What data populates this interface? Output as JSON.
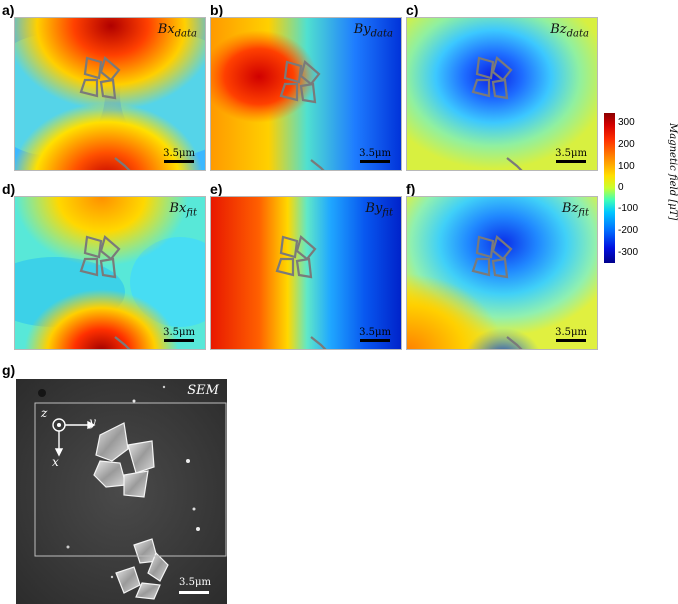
{
  "panels": [
    {
      "letter": "a)",
      "title_main": "Bx",
      "title_sub": "data",
      "scale": "3.5μm"
    },
    {
      "letter": "b)",
      "title_main": "By",
      "title_sub": "data",
      "scale": "3.5μm"
    },
    {
      "letter": "c)",
      "title_main": "Bz",
      "title_sub": "data",
      "scale": "3.5μm"
    },
    {
      "letter": "d)",
      "title_main": "Bx",
      "title_sub": "fit",
      "scale": "3.5μm"
    },
    {
      "letter": "e)",
      "title_main": "By",
      "title_sub": "fit",
      "scale": "3.5μm"
    },
    {
      "letter": "f)",
      "title_main": "Bz",
      "title_sub": "fit",
      "scale": "3.5μm"
    }
  ],
  "colorbar": {
    "label": "Magnetic field [μT]",
    "ticks": [
      "300",
      "200",
      "100",
      "0",
      "-100",
      "-200",
      "-300"
    ],
    "colors": [
      "#8b0000",
      "#ff3000",
      "#ffe000",
      "#40ffb8",
      "#0070ff",
      "#00008b"
    ]
  },
  "sem": {
    "letter": "g)",
    "title": "SEM",
    "scale": "3.5μm",
    "axis_z": "z",
    "axis_y": "y",
    "axis_x": "x"
  }
}
